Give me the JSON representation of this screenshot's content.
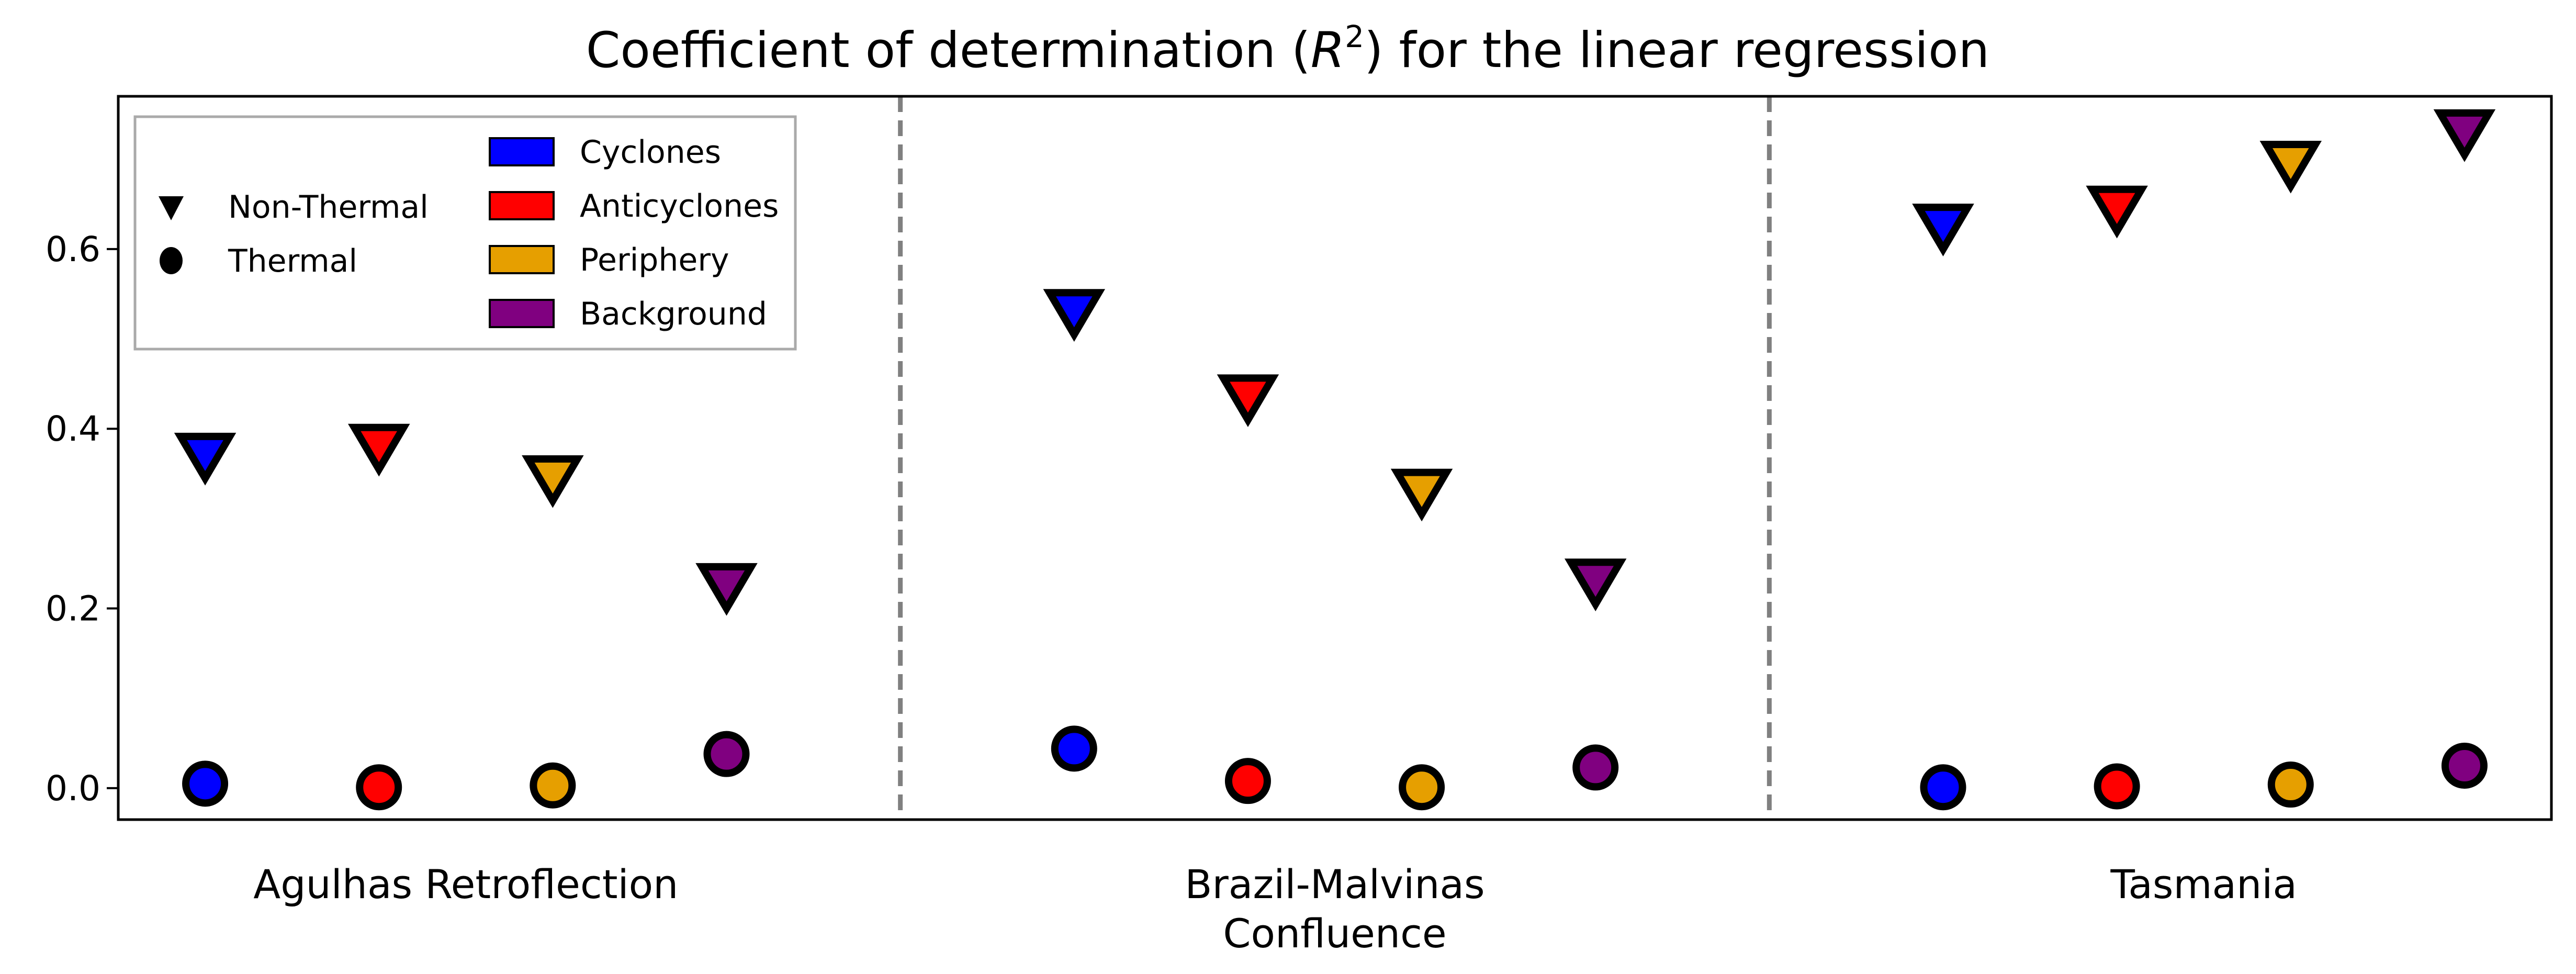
{
  "chart_data": {
    "type": "scatter",
    "title": "Coefficient of determination (R²) for the linear regression",
    "title_parts": {
      "before": "Coefficient of determination (",
      "symbol": "R",
      "superscript": "2",
      "after": ") for the linear regression"
    },
    "xlabel": "",
    "ylabel": "",
    "ylim": [
      -0.035,
      0.77
    ],
    "yticks": [
      0.0,
      0.2,
      0.4,
      0.6
    ],
    "ytick_labels": [
      "0.0",
      "0.2",
      "0.4",
      "0.6"
    ],
    "grid": false,
    "groups": [
      "Agulhas Retroflection",
      "Brazil-Malvinas\nConfluence",
      "Tasmania"
    ],
    "categories": [
      "Cyclones",
      "Anticyclones",
      "Periphery",
      "Background"
    ],
    "colors": {
      "Cyclones": "#0000ff",
      "Anticyclones": "#ff0000",
      "Periphery": "#e69f00",
      "Background": "#800080"
    },
    "series": [
      {
        "name": "Non-Thermal",
        "marker": "triangle-down",
        "values": [
          [
            0.375,
            0.385,
            0.35,
            0.23
          ],
          [
            0.535,
            0.44,
            0.335,
            0.235
          ],
          [
            0.63,
            0.65,
            0.7,
            0.735
          ]
        ]
      },
      {
        "name": "Thermal",
        "marker": "circle",
        "values": [
          [
            0.005,
            0.001,
            0.003,
            0.038
          ],
          [
            0.044,
            0.008,
            0.001,
            0.023
          ],
          [
            0.001,
            0.002,
            0.004,
            0.025
          ]
        ]
      }
    ],
    "separators": "dashed vertical lines between groups",
    "legend": {
      "placement": "top-left",
      "marker_entries": [
        "Non-Thermal",
        "Thermal"
      ],
      "color_entries": [
        "Cyclones",
        "Anticyclones",
        "Periphery",
        "Background"
      ]
    }
  }
}
